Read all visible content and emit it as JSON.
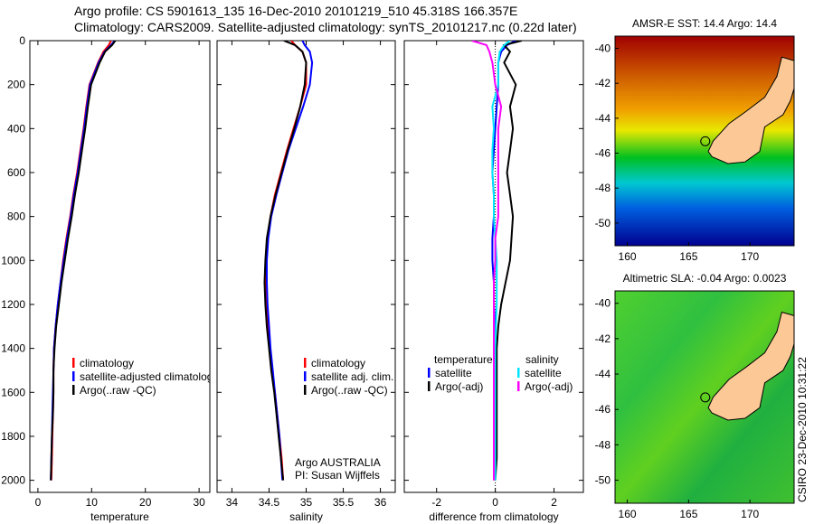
{
  "title_line1": "Argo profile: CS 5901613_135 16-Dec-2010 20101219_510 45.318S 166.357E",
  "title_line2": "Climatology: CARS2009. Satellite-adjusted climatology: synTS_20101217.nc (0.22d later)",
  "credit": "CSIRO 23-Dec-2010 10:31:22",
  "colors": {
    "climatology": "#ff0000",
    "satellite": "#0000ff",
    "argo": "#000000",
    "sal_satellite": "#00e5ff",
    "sal_argo": "#ff00ff"
  },
  "chart_data": [
    {
      "type": "line",
      "xlabel": "temperature",
      "ylabel": "",
      "xlim": [
        -1.5,
        32
      ],
      "ylim": [
        2055,
        0
      ],
      "xticks": [
        0,
        10,
        20,
        30
      ],
      "yticks": [
        0,
        200,
        400,
        600,
        800,
        1000,
        1200,
        1400,
        1600,
        1800,
        2000
      ],
      "depth": [
        0,
        20,
        50,
        100,
        200,
        300,
        400,
        500,
        600,
        700,
        800,
        900,
        1000,
        1100,
        1200,
        1300,
        1400,
        1500,
        1600,
        1700,
        1800,
        1900,
        2000
      ],
      "series": [
        {
          "name": "climatology",
          "color": "#ff0000",
          "values": [
            13.6,
            13.2,
            12.2,
            11.2,
            9.6,
            9.0,
            8.5,
            7.9,
            7.3,
            6.6,
            6.0,
            5.3,
            4.7,
            4.2,
            3.7,
            3.3,
            3.0,
            2.9,
            2.9,
            2.8,
            2.7,
            2.6,
            2.5
          ]
        },
        {
          "name": "satellite-adjusted climatology",
          "color": "#0000ff",
          "values": [
            14.3,
            13.6,
            12.4,
            11.3,
            9.7,
            9.1,
            8.6,
            8.0,
            7.4,
            6.7,
            6.1,
            5.4,
            4.8,
            4.2,
            3.7,
            3.3,
            3.0,
            2.9,
            2.8,
            2.7,
            2.6,
            2.5,
            2.4
          ]
        },
        {
          "name": "Argo(..raw -QC)",
          "color": "#000000",
          "values": [
            14.4,
            13.8,
            12.5,
            11.5,
            9.9,
            9.3,
            8.8,
            8.2,
            7.6,
            6.9,
            6.3,
            5.6,
            5.0,
            4.4,
            3.9,
            3.4,
            3.1,
            2.9,
            2.9,
            2.8,
            2.6,
            2.5,
            2.4
          ]
        }
      ]
    },
    {
      "type": "line",
      "xlabel": "salinity",
      "xlim": [
        33.8,
        36.2
      ],
      "ylim": [
        2055,
        0
      ],
      "xticks": [
        34,
        34.5,
        35,
        35.5,
        36
      ],
      "yticks": [],
      "depth": [
        0,
        20,
        50,
        100,
        200,
        300,
        400,
        500,
        600,
        700,
        800,
        900,
        1000,
        1100,
        1200,
        1300,
        1400,
        1500,
        1600,
        1700,
        1800,
        1900,
        2000
      ],
      "series": [
        {
          "name": "climatology",
          "color": "#ff0000",
          "values": [
            34.8,
            34.85,
            34.95,
            35.0,
            35.0,
            34.92,
            34.83,
            34.74,
            34.66,
            34.58,
            34.52,
            34.48,
            34.46,
            34.46,
            34.47,
            34.49,
            34.51,
            34.54,
            34.58,
            34.61,
            34.64,
            34.67,
            34.69
          ]
        },
        {
          "name": "satellite adj. clim.",
          "color": "#0000ff",
          "values": [
            34.95,
            34.98,
            35.05,
            35.08,
            35.05,
            34.96,
            34.86,
            34.76,
            34.68,
            34.6,
            34.53,
            34.49,
            34.47,
            34.47,
            34.48,
            34.5,
            34.52,
            34.55,
            34.58,
            34.61,
            34.64,
            34.66,
            34.68
          ]
        },
        {
          "name": "Argo(..raw -QC)",
          "color": "#000000",
          "values": [
            34.7,
            34.85,
            34.95,
            35.0,
            34.98,
            34.92,
            34.84,
            34.75,
            34.67,
            34.59,
            34.52,
            34.47,
            34.45,
            34.44,
            34.45,
            34.47,
            34.5,
            34.53,
            34.57,
            34.6,
            34.63,
            34.66,
            34.69
          ]
        }
      ],
      "annotations": [
        "Argo AUSTRALIA",
        "PI: Susan Wijffels"
      ]
    },
    {
      "type": "line",
      "xlabel": "difference from climatology",
      "xlim": [
        -3.1,
        3
      ],
      "ylim": [
        2055,
        0
      ],
      "xticks": [
        -2,
        0,
        2
      ],
      "yticks": [],
      "legend_headers": [
        "temperature",
        "salinity"
      ],
      "depth": [
        0,
        20,
        50,
        100,
        200,
        300,
        400,
        500,
        600,
        700,
        800,
        900,
        1000,
        1100,
        1200,
        1300,
        1400,
        1500,
        1600,
        1700,
        1800,
        1900,
        2000
      ],
      "series": [
        {
          "name": "satellite",
          "group": "temperature",
          "color": "#0000ff",
          "values": [
            0.7,
            0.4,
            0.2,
            0.1,
            0.1,
            0.05,
            0.0,
            -0.05,
            -0.1,
            -0.05,
            -0.05,
            -0.1,
            -0.1,
            -0.05,
            -0.05,
            0.0,
            0.0,
            0.0,
            -0.05,
            -0.05,
            -0.05,
            -0.05,
            -0.05
          ]
        },
        {
          "name": "Argo(-adj)",
          "group": "temperature",
          "color": "#000000",
          "values": [
            0.9,
            0.3,
            0.5,
            0.3,
            0.7,
            0.5,
            0.6,
            0.5,
            0.4,
            0.5,
            0.6,
            0.55,
            0.5,
            0.35,
            0.2,
            0.1,
            0.05,
            0.05,
            0.05,
            0.05,
            0.05,
            0.05,
            0.0
          ]
        },
        {
          "name": "satellite",
          "group": "salinity",
          "color": "#00e5ff",
          "values": [
            0.5,
            0.3,
            0.15,
            0.1,
            0.1,
            -0.1,
            -0.05,
            -0.1,
            -0.1,
            -0.05,
            -0.05,
            0.0,
            0.05,
            0.05,
            0.05,
            0.02,
            0.0,
            0.0,
            0.0,
            0.0,
            0.0,
            0.0,
            0.0
          ]
        },
        {
          "name": "Argo(-adj)",
          "group": "salinity",
          "color": "#ff00ff",
          "values": [
            -0.8,
            -0.3,
            -0.2,
            -0.1,
            0.0,
            0.2,
            0.1,
            0.1,
            0.1,
            0.1,
            0.1,
            0.0,
            0.0,
            -0.05,
            -0.05,
            -0.05,
            -0.05,
            -0.05,
            -0.05,
            -0.05,
            -0.05,
            -0.05,
            -0.05
          ]
        }
      ]
    }
  ],
  "maps": [
    {
      "title": "AMSR-E SST: 14.4 Argo: 14.4",
      "lat_ticks": [
        "-40",
        "-42",
        "-44",
        "-46",
        "-48",
        "-50"
      ],
      "lon_ticks": [
        "160",
        "165",
        "170"
      ]
    },
    {
      "title": "Altimetric SLA: -0.04 Argo: 0.0023",
      "lat_ticks": [
        "-40",
        "-42",
        "-44",
        "-46",
        "-48",
        "-50"
      ],
      "lon_ticks": [
        "160",
        "165",
        "170"
      ]
    }
  ]
}
